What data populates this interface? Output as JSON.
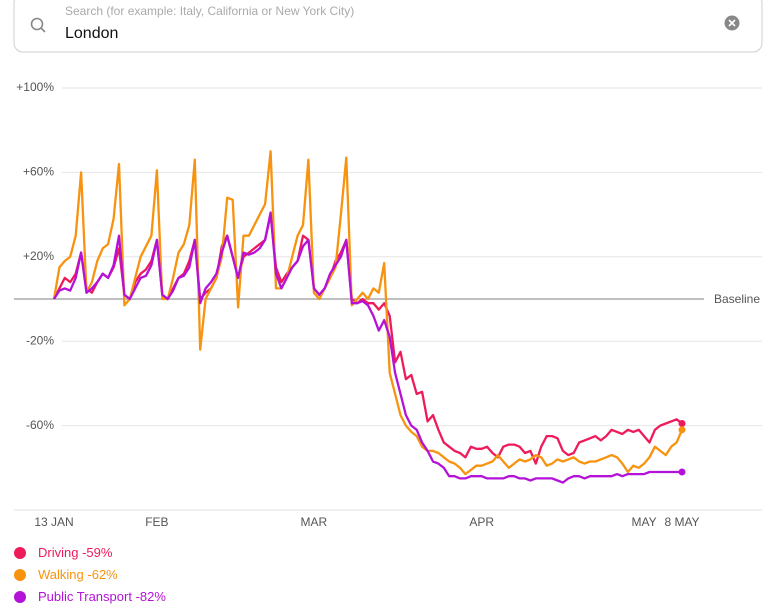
{
  "search": {
    "placeholder": "Search (for example: Italy, California or New York City)",
    "query": "London"
  },
  "chart_data": {
    "type": "line",
    "x": [
      "13 JAN",
      "14 JAN",
      "15 JAN",
      "16 JAN",
      "17 JAN",
      "18 JAN",
      "19 JAN",
      "20 JAN",
      "21 JAN",
      "22 JAN",
      "23 JAN",
      "24 JAN",
      "25 JAN",
      "26 JAN",
      "27 JAN",
      "28 JAN",
      "29 JAN",
      "30 JAN",
      "31 JAN",
      "1 FEB",
      "2 FEB",
      "3 FEB",
      "4 FEB",
      "5 FEB",
      "6 FEB",
      "7 FEB",
      "8 FEB",
      "9 FEB",
      "10 FEB",
      "11 FEB",
      "12 FEB",
      "13 FEB",
      "14 FEB",
      "15 FEB",
      "16 FEB",
      "17 FEB",
      "18 FEB",
      "19 FEB",
      "20 FEB",
      "21 FEB",
      "22 FEB",
      "23 FEB",
      "24 FEB",
      "25 FEB",
      "26 FEB",
      "27 FEB",
      "28 FEB",
      "29 FEB",
      "1 MAR",
      "2 MAR",
      "3 MAR",
      "4 MAR",
      "5 MAR",
      "6 MAR",
      "7 MAR",
      "8 MAR",
      "9 MAR",
      "10 MAR",
      "11 MAR",
      "12 MAR",
      "13 MAR",
      "14 MAR",
      "15 MAR",
      "16 MAR",
      "17 MAR",
      "18 MAR",
      "19 MAR",
      "20 MAR",
      "21 MAR",
      "22 MAR",
      "23 MAR",
      "24 MAR",
      "25 MAR",
      "26 MAR",
      "27 MAR",
      "28 MAR",
      "29 MAR",
      "30 MAR",
      "31 MAR",
      "1 APR",
      "2 APR",
      "3 APR",
      "4 APR",
      "5 APR",
      "6 APR",
      "7 APR",
      "8 APR",
      "9 APR",
      "10 APR",
      "11 APR",
      "12 APR",
      "13 APR",
      "14 APR",
      "15 APR",
      "16 APR",
      "17 APR",
      "18 APR",
      "19 APR",
      "20 APR",
      "21 APR",
      "22 APR",
      "23 APR",
      "24 APR",
      "25 APR",
      "26 APR",
      "27 APR",
      "28 APR",
      "29 APR",
      "30 APR",
      "1 MAY",
      "2 MAY",
      "3 MAY",
      "4 MAY",
      "5 MAY",
      "6 MAY",
      "7 MAY",
      "8 MAY"
    ],
    "xlim": [
      "13 JAN",
      "8 MAY"
    ],
    "xticks": [
      "13 JAN",
      {
        "value": "1 FEB",
        "label": "FEB"
      },
      {
        "value": "1 MAR",
        "label": "MAR"
      },
      {
        "value": "1 APR",
        "label": "APR"
      },
      {
        "value": "1 MAY",
        "label": "MAY"
      },
      "8 MAY"
    ],
    "ylim": [
      -100,
      100
    ],
    "yticks": [
      {
        "value": 100,
        "label": "+100%"
      },
      {
        "value": 60,
        "label": "+60%"
      },
      {
        "value": 20,
        "label": "+20%"
      },
      {
        "value": -20,
        "label": "-20%"
      },
      {
        "value": -60,
        "label": "-60%"
      }
    ],
    "baseline": {
      "value": 0,
      "label": "Baseline"
    },
    "grid": true,
    "series": [
      {
        "name": "Driving",
        "summary": "-59%",
        "color": "#ee1b5b",
        "values": [
          0,
          5,
          10,
          8,
          12,
          22,
          5,
          3,
          8,
          12,
          10,
          15,
          24,
          2,
          0,
          8,
          12,
          14,
          18,
          28,
          2,
          0,
          5,
          10,
          12,
          18,
          28,
          0,
          3,
          5,
          10,
          25,
          30,
          20,
          10,
          20,
          22,
          24,
          26,
          28,
          40,
          15,
          8,
          12,
          15,
          18,
          30,
          28,
          5,
          2,
          5,
          10,
          18,
          22,
          28,
          0,
          -2,
          0,
          -2,
          -2,
          -5,
          -2,
          -8,
          -30,
          -25,
          -38,
          -36,
          -45,
          -44,
          -58,
          -55,
          -62,
          -68,
          -70,
          -72,
          -73,
          -75,
          -70,
          -71,
          -71,
          -70,
          -73,
          -75,
          -70,
          -69,
          -69,
          -70,
          -73,
          -72,
          -78,
          -70,
          -65,
          -65,
          -66,
          -72,
          -74,
          -73,
          -68,
          -67,
          -66,
          -65,
          -67,
          -65,
          -62,
          -63,
          -64,
          -62,
          -63,
          -62,
          -65,
          -68,
          -62,
          -60,
          -59,
          -58,
          -57,
          -59
        ]
      },
      {
        "name": "Walking",
        "summary": "-62%",
        "color": "#f7930f",
        "values": [
          0,
          15,
          18,
          20,
          30,
          60,
          3,
          8,
          18,
          24,
          26,
          38,
          64,
          -3,
          0,
          10,
          20,
          25,
          30,
          61,
          0,
          0,
          10,
          22,
          26,
          35,
          66,
          -24,
          0,
          5,
          10,
          20,
          48,
          47,
          -4,
          30,
          30,
          35,
          40,
          45,
          70,
          5,
          5,
          10,
          20,
          30,
          35,
          66,
          3,
          0,
          5,
          10,
          15,
          40,
          67,
          -3,
          0,
          3,
          0,
          5,
          3,
          17,
          -35,
          -45,
          -55,
          -60,
          -63,
          -65,
          -70,
          -72,
          -72,
          -73,
          -75,
          -77,
          -78,
          -80,
          -83,
          -81,
          -79,
          -79,
          -78,
          -77,
          -74,
          -77,
          -80,
          -78,
          -76,
          -77,
          -76,
          -74,
          -75,
          -79,
          -78,
          -76,
          -77,
          -76,
          -75,
          -77,
          -78,
          -77,
          -77,
          -76,
          -75,
          -74,
          -75,
          -78,
          -82,
          -79,
          -80,
          -78,
          -75,
          -70,
          -72,
          -74,
          -70,
          -68,
          -62
        ]
      },
      {
        "name": "Public Transport",
        "summary": "-82%",
        "color": "#b512d8",
        "values": [
          0,
          4,
          5,
          4,
          10,
          22,
          3,
          5,
          8,
          12,
          10,
          16,
          30,
          2,
          0,
          5,
          10,
          11,
          16,
          28,
          2,
          0,
          4,
          10,
          11,
          15,
          28,
          -2,
          5,
          8,
          12,
          22,
          30,
          20,
          10,
          22,
          21,
          22,
          24,
          28,
          41,
          12,
          5,
          10,
          15,
          18,
          25,
          28,
          5,
          2,
          5,
          12,
          16,
          20,
          28,
          -2,
          -2,
          -1,
          -3,
          -8,
          -15,
          -10,
          -18,
          -35,
          -45,
          -55,
          -60,
          -62,
          -68,
          -72,
          -77,
          -78,
          -80,
          -84,
          -84,
          -85,
          -85,
          -84,
          -84,
          -84,
          -85,
          -85,
          -85,
          -85,
          -84,
          -84,
          -85,
          -85,
          -86,
          -85,
          -85,
          -85,
          -85,
          -86,
          -87,
          -85,
          -84,
          -84,
          -85,
          -84,
          -84,
          -84,
          -84,
          -84,
          -83,
          -84,
          -83,
          -83,
          -83,
          -83,
          -82,
          -82,
          -82,
          -82,
          -82,
          -82,
          -82
        ]
      }
    ]
  }
}
